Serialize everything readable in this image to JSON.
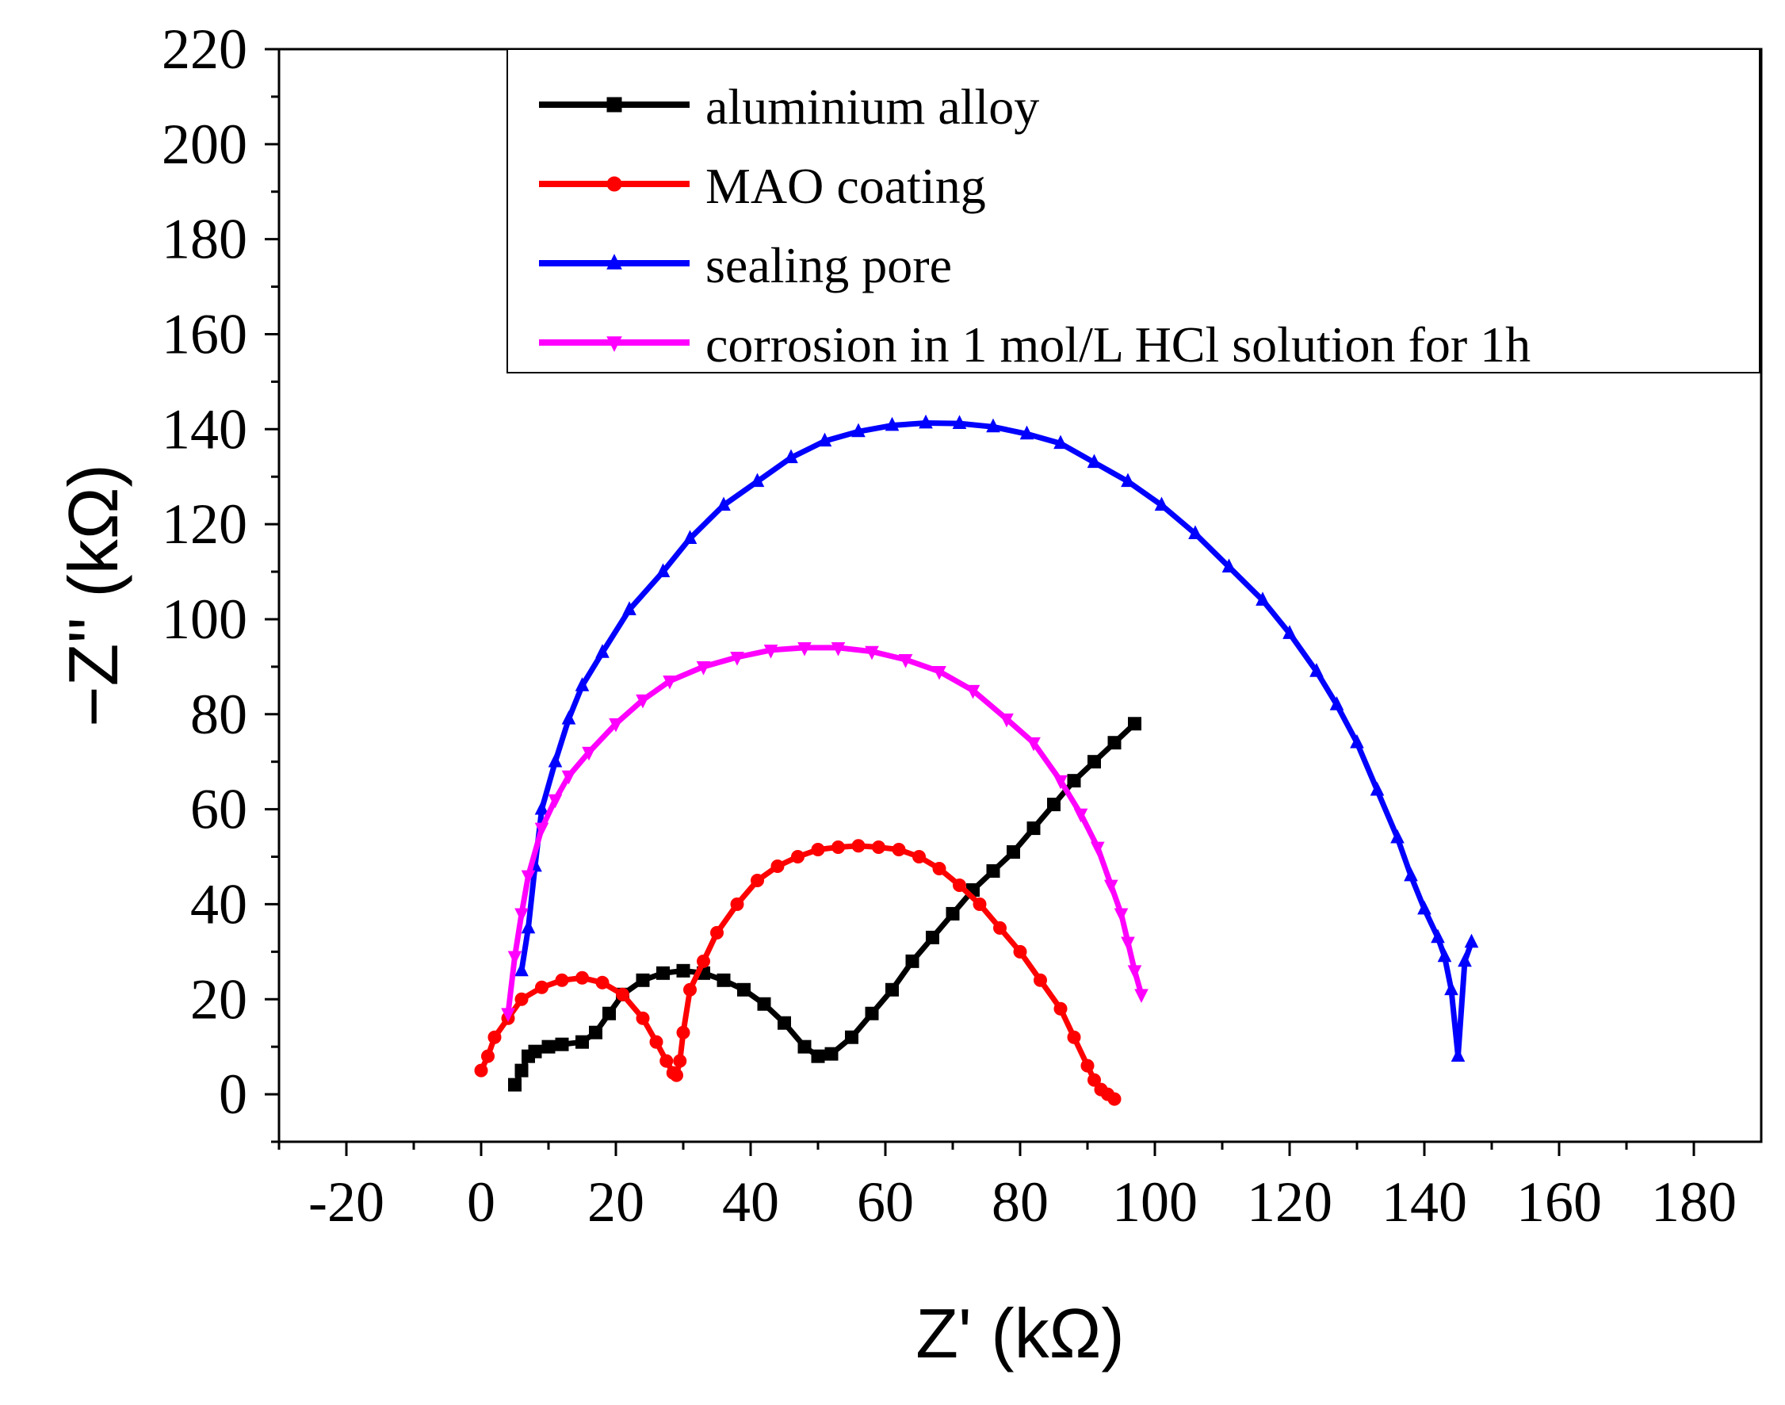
{
  "chart_data": {
    "type": "scatter",
    "title": "",
    "xlabel": "Z' (kΩ)",
    "ylabel": "−Z'' (kΩ)",
    "xlim": [
      -30,
      190
    ],
    "ylim": [
      -10,
      220
    ],
    "x_ticks": [
      "-20",
      "0",
      "20",
      "40",
      "60",
      "80",
      "100",
      "120",
      "140",
      "160",
      "180"
    ],
    "y_ticks": [
      "0",
      "20",
      "40",
      "60",
      "80",
      "100",
      "120",
      "140",
      "160",
      "180",
      "200",
      "220"
    ],
    "grid": false,
    "legend_position": "top-right",
    "series": [
      {
        "name": "aluminium alloy",
        "color": "#000000",
        "marker": "square",
        "x": [
          5,
          6,
          7,
          8,
          10,
          12,
          15,
          17,
          19,
          21,
          24,
          27,
          30,
          33,
          36,
          39,
          42,
          45,
          48,
          50,
          52,
          55,
          58,
          61,
          64,
          67,
          70,
          73,
          76,
          79,
          82,
          85,
          88,
          91,
          94,
          97
        ],
        "y": [
          2,
          5,
          8,
          9,
          10,
          10.5,
          11,
          13,
          17,
          21,
          24,
          25.5,
          26,
          25.5,
          24,
          22,
          19,
          15,
          10,
          8,
          8.5,
          12,
          17,
          22,
          28,
          33,
          38,
          43,
          47,
          51,
          56,
          61,
          66,
          70,
          74,
          78
        ]
      },
      {
        "name": "MAO coating",
        "color": "#ff0000",
        "marker": "circle",
        "x": [
          0,
          1,
          2,
          4,
          6,
          9,
          12,
          15,
          18,
          21,
          24,
          26,
          27.5,
          28.5,
          29,
          29.5,
          30,
          31,
          33,
          35,
          38,
          41,
          44,
          47,
          50,
          53,
          56,
          59,
          62,
          65,
          68,
          71,
          74,
          77,
          80,
          83,
          86,
          88,
          90,
          91,
          92,
          93,
          94
        ],
        "y": [
          5,
          8,
          12,
          16,
          20,
          22.5,
          24,
          24.5,
          23.5,
          21,
          16,
          11,
          7,
          4.5,
          4,
          7,
          13,
          22,
          28,
          34,
          40,
          45,
          48,
          50,
          51.5,
          52,
          52.3,
          52,
          51.5,
          50,
          47.5,
          44,
          40,
          35,
          30,
          24,
          18,
          12,
          6,
          3,
          1,
          0,
          -1
        ]
      },
      {
        "name": "sealing pore",
        "color": "#0000ff",
        "marker": "triangle-up",
        "x": [
          6,
          7,
          8,
          9,
          11,
          13,
          15,
          18,
          22,
          27,
          31,
          36,
          41,
          46,
          51,
          56,
          61,
          66,
          71,
          76,
          81,
          86,
          91,
          96,
          101,
          106,
          111,
          116,
          120,
          124,
          127,
          130,
          133,
          136,
          138,
          140,
          142,
          143,
          144,
          145,
          146,
          147
        ],
        "y": [
          26,
          35,
          48,
          60,
          70,
          79,
          86,
          93,
          102,
          110,
          117,
          124,
          129,
          134,
          137.5,
          139.5,
          140.8,
          141.3,
          141.2,
          140.5,
          139,
          137,
          133,
          129,
          124,
          118,
          111,
          104,
          97,
          89,
          82,
          74,
          64,
          54,
          46,
          39,
          33,
          29,
          22,
          8,
          28,
          32
        ]
      },
      {
        "name": "corrosion in 1 mol/L HCl solution for 1h",
        "color": "#ff00ff",
        "marker": "triangle-down",
        "x": [
          4,
          5,
          6,
          7,
          9,
          11,
          13,
          16,
          20,
          24,
          28,
          33,
          38,
          43,
          48,
          53,
          58,
          63,
          68,
          73,
          78,
          82,
          86,
          89,
          91.5,
          93.5,
          95,
          96,
          97,
          98
        ],
        "y": [
          17,
          29,
          38,
          46,
          56,
          62,
          67,
          72,
          78,
          83,
          87,
          90,
          92,
          93.5,
          94,
          94,
          93.2,
          91.5,
          89,
          85,
          79,
          74,
          66,
          59,
          52,
          44,
          38,
          32,
          26,
          21
        ]
      }
    ]
  }
}
